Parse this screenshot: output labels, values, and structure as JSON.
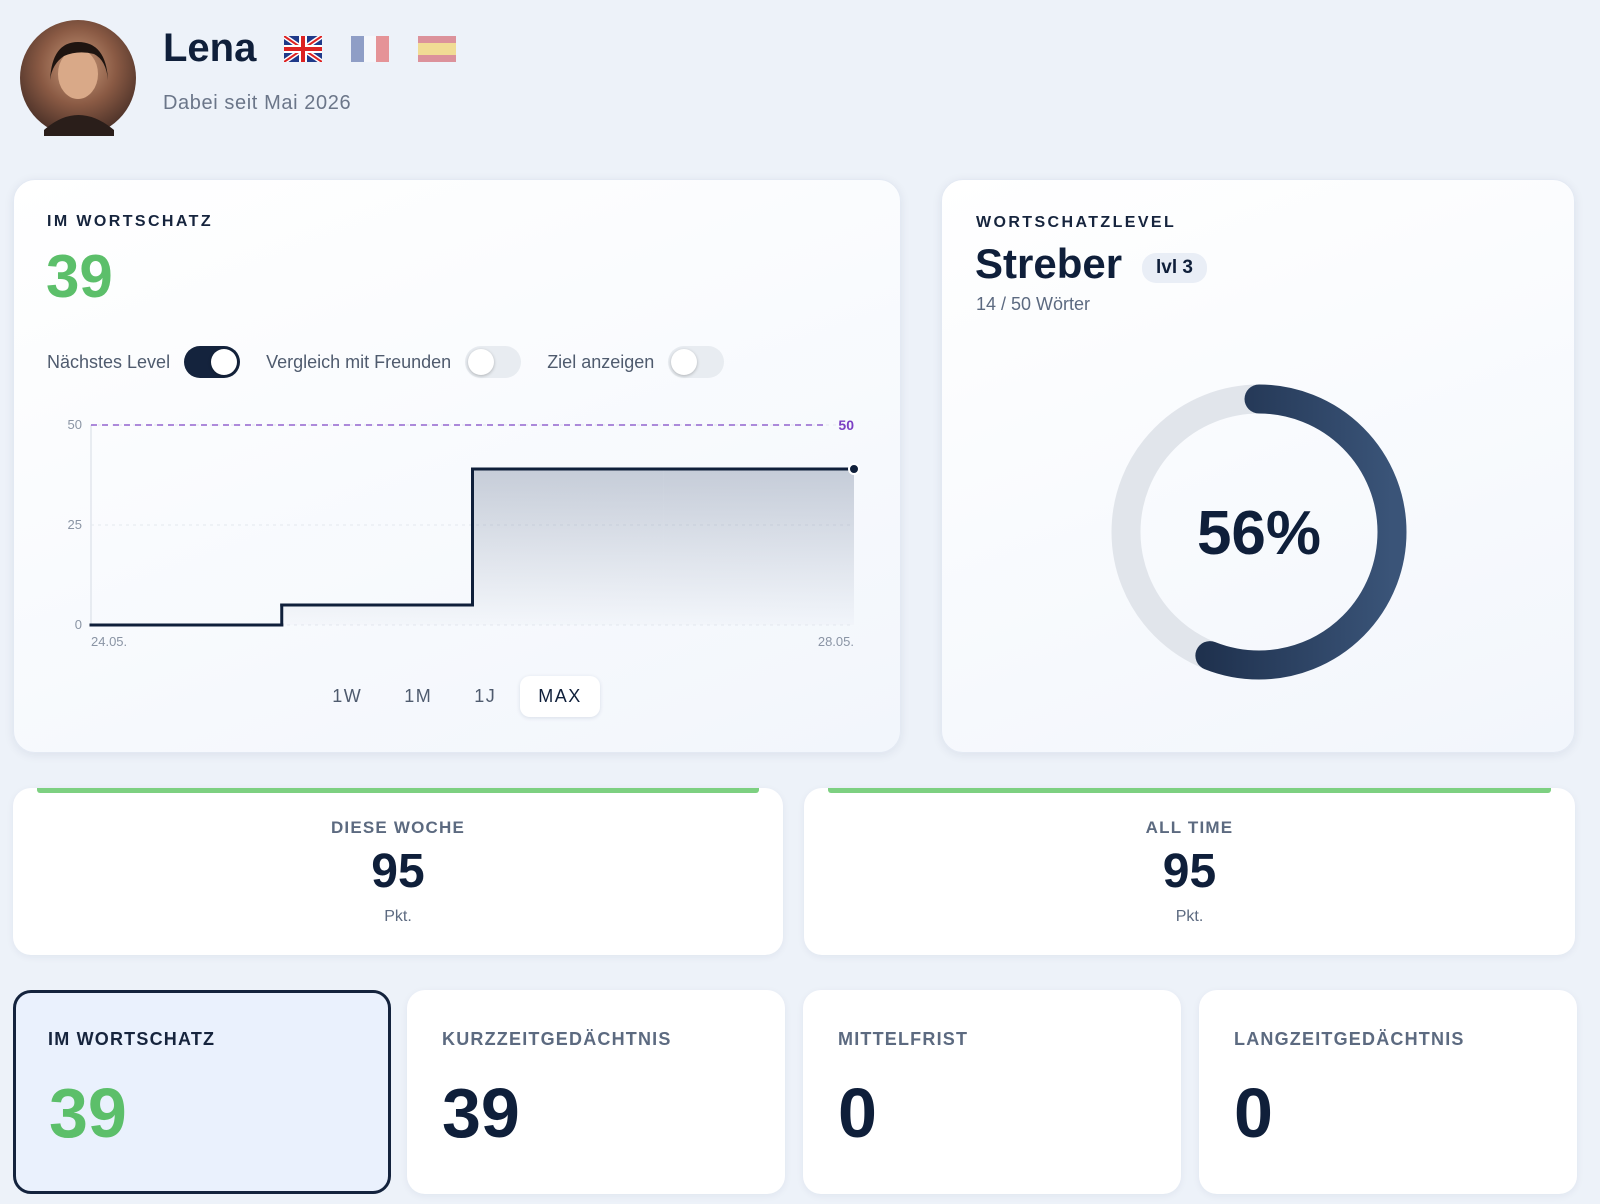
{
  "profile": {
    "name": "Lena",
    "since": "Dabei seit Mai 2026"
  },
  "vocab_card": {
    "label": "IM WORTSCHATZ",
    "value": 39,
    "toggles": [
      {
        "label": "Nächstes Level",
        "on": true
      },
      {
        "label": "Vergleich mit Freunden",
        "on": false
      },
      {
        "label": "Ziel anzeigen",
        "on": false
      }
    ],
    "ranges": [
      "1W",
      "1M",
      "1J",
      "MAX"
    ],
    "selected_range": 3
  },
  "chart_data": {
    "type": "step",
    "categories": [
      "24.05.",
      null,
      null,
      null,
      "28.05."
    ],
    "values": [
      0,
      5,
      39,
      39,
      39
    ],
    "color": "#0f1f3a",
    "ylim": [
      0,
      50
    ],
    "yticks": [
      0,
      25,
      50
    ],
    "grid": true,
    "goal": 50,
    "goal_color": "#7b3fc4"
  },
  "level_card": {
    "label": "WORTSCHATZLEVEL",
    "name": "Streber",
    "badge": "lvl 3",
    "words": "14 / 50 Wörter",
    "progress": {
      "value": 56,
      "label": "56%"
    }
  },
  "points": [
    {
      "label": "DIESE WOCHE",
      "value": 95,
      "unit": "Pkt."
    },
    {
      "label": "ALL TIME",
      "value": 95,
      "unit": "Pkt."
    }
  ],
  "memory": [
    {
      "label": "IM WORTSCHATZ",
      "value": 39,
      "selected": true
    },
    {
      "label": "KURZZEITGEDÄCHTNIS",
      "value": 39,
      "selected": false
    },
    {
      "label": "MITTELFRIST",
      "value": 0,
      "selected": false
    },
    {
      "label": "LANGZEITGEDÄCHTNIS",
      "value": 0,
      "selected": false
    }
  ]
}
